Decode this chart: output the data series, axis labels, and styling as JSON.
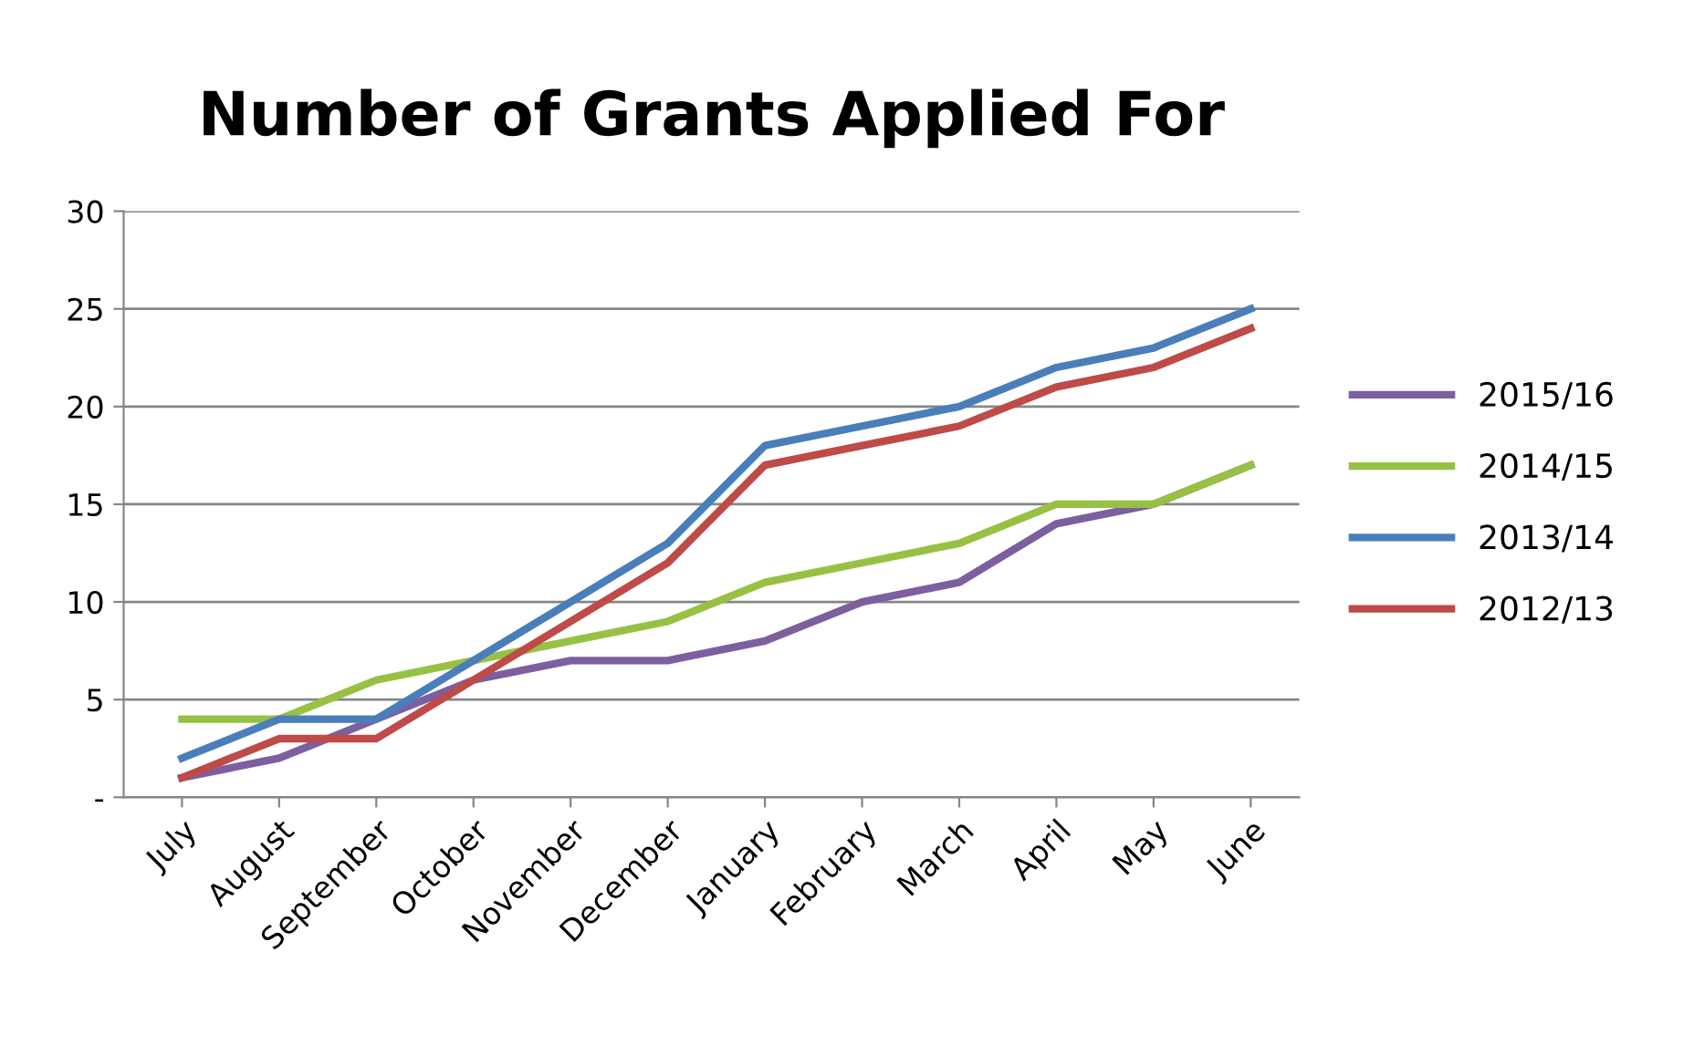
{
  "chart_data": {
    "type": "line",
    "title": "Number of Grants Applied For",
    "categories": [
      "July",
      "August",
      "September",
      "October",
      "November",
      "December",
      "January",
      "February",
      "March",
      "April",
      "May",
      "June"
    ],
    "series": [
      {
        "name": "2015/16",
        "color": "#7d5fa0",
        "values": [
          1,
          2,
          4,
          6,
          7,
          7,
          8,
          10,
          11,
          14,
          15,
          17
        ]
      },
      {
        "name": "2014/15",
        "color": "#98c144",
        "values": [
          4,
          4,
          6,
          7,
          8,
          9,
          11,
          12,
          13,
          15,
          15,
          17
        ]
      },
      {
        "name": "2013/14",
        "color": "#4a7ebb",
        "values": [
          2,
          4,
          4,
          7,
          10,
          13,
          18,
          19,
          20,
          22,
          23,
          25
        ]
      },
      {
        "name": "2012/13",
        "color": "#be4b48",
        "values": [
          1,
          3,
          3,
          6,
          9,
          12,
          17,
          18,
          19,
          21,
          22,
          24
        ]
      }
    ],
    "ylim": [
      0,
      30
    ],
    "yticks": [
      {
        "value": 0,
        "label": "-"
      },
      5,
      10,
      15,
      20,
      25,
      30
    ],
    "grid": "y",
    "legend": "right",
    "marker": "none",
    "line_style": "solid"
  }
}
